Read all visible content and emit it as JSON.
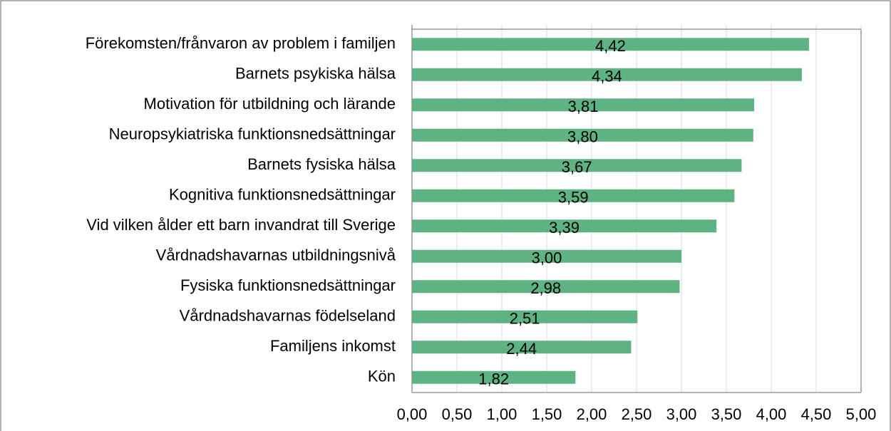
{
  "chart_data": {
    "type": "bar",
    "orientation": "horizontal",
    "categories": [
      "Förekomsten/frånvaron av problem i familjen",
      "Barnets psykiska hälsa",
      "Motivation för utbildning och lärande",
      "Neuropsykiatriska funktionsnedsättningar",
      "Barnets fysiska hälsa",
      "Kognitiva funktionsnedsättningar",
      "Vid vilken ålder ett barn invandrat till Sverige",
      "Vårdnadshavarnas utbildningsnivå",
      "Fysiska funktionsnedsättningar",
      "Vårdnadshavarnas födelseland",
      "Familjens inkomst",
      "Kön"
    ],
    "values": [
      4.42,
      4.34,
      3.81,
      3.8,
      3.67,
      3.59,
      3.39,
      3.0,
      2.98,
      2.51,
      2.44,
      1.82
    ],
    "value_labels": [
      "4,42",
      "4,34",
      "3,81",
      "3,80",
      "3,67",
      "3,59",
      "3,39",
      "3,00",
      "2,98",
      "2,51",
      "2,44",
      "1,82"
    ],
    "color": "#5fb382",
    "xlim": [
      0,
      5
    ],
    "xticks": [
      {
        "value": 0,
        "label": "0,00"
      },
      {
        "value": 0.5,
        "label": "0,50"
      },
      {
        "value": 1,
        "label": "1,00"
      },
      {
        "value": 1.5,
        "label": "1,50"
      },
      {
        "value": 2,
        "label": "2,00"
      },
      {
        "value": 2.5,
        "label": "2,50"
      },
      {
        "value": 3,
        "label": "3,00"
      },
      {
        "value": 3.5,
        "label": "3,50"
      },
      {
        "value": 4,
        "label": "4,00"
      },
      {
        "value": 4.5,
        "label": "4,50"
      },
      {
        "value": 5,
        "label": "5,00"
      }
    ],
    "grid": true
  }
}
